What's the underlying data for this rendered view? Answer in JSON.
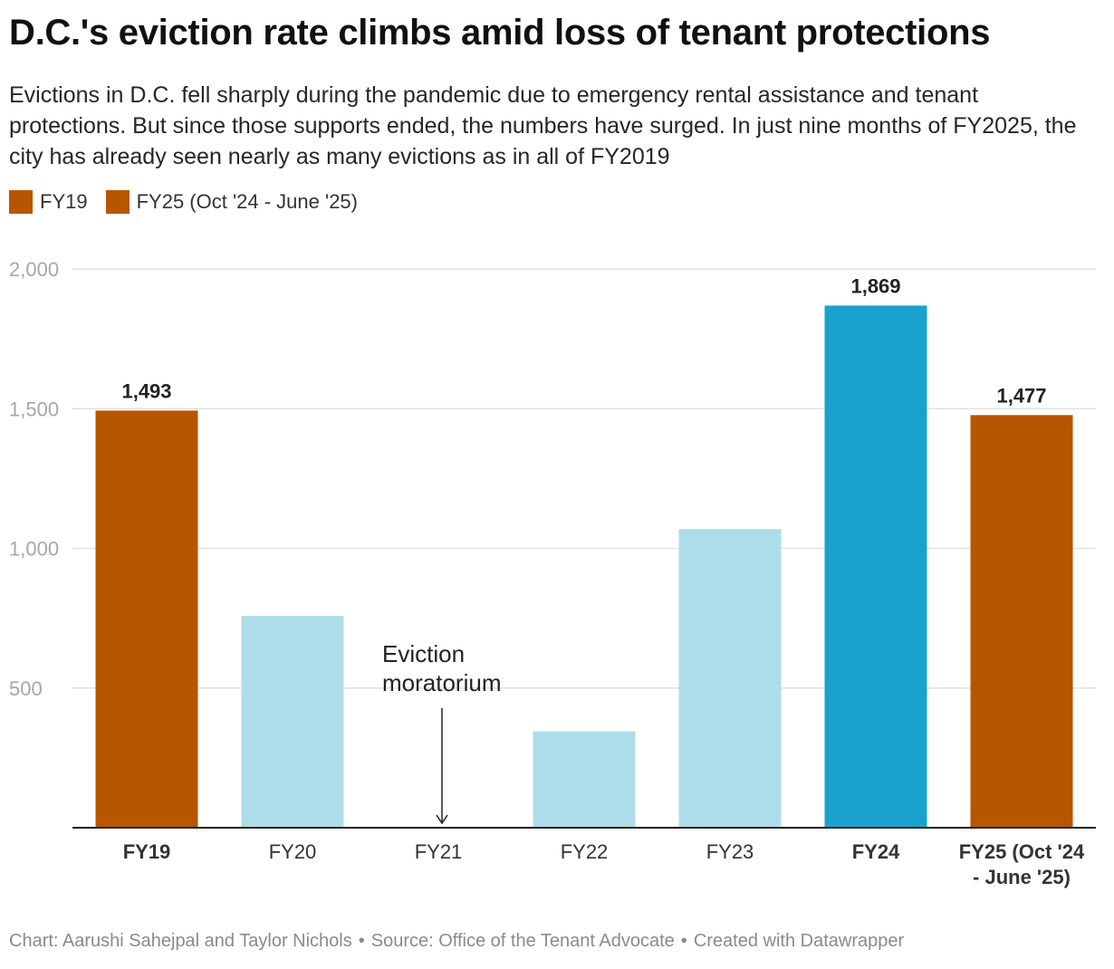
{
  "header": {
    "title": "D.C.'s eviction rate climbs amid loss of tenant protections",
    "subtitle": "Evictions in D.C. fell sharply during the pandemic due to emergency rental assistance and tenant protections. But since those supports ended, the numbers have surged. In just nine months of FY2025, the city has already seen nearly as many evictions as in all of FY2019"
  },
  "legend": [
    {
      "label": "FY19",
      "color": "#b85600"
    },
    {
      "label": "FY25 (Oct '24 - June '25)",
      "color": "#b85600"
    }
  ],
  "chart_data": {
    "type": "bar",
    "categories": [
      "FY19",
      "FY20",
      "FY21",
      "FY22",
      "FY23",
      "FY24",
      "FY25 (Oct '24 - June '25)"
    ],
    "category_label_lines": [
      [
        "FY19"
      ],
      [
        "FY20"
      ],
      [
        "FY21"
      ],
      [
        "FY22"
      ],
      [
        "FY23"
      ],
      [
        "FY24"
      ],
      [
        "FY25 (Oct '24",
        "- June '25)"
      ]
    ],
    "values": [
      1493,
      758,
      0,
      345,
      1069,
      1869,
      1477
    ],
    "colors": [
      "#b85600",
      "#addde9",
      "#addde9",
      "#addde9",
      "#addde9",
      "#1aa2cf",
      "#b85600"
    ],
    "bold_labels": [
      true,
      false,
      false,
      false,
      false,
      true,
      true
    ],
    "value_labels": [
      "1,493",
      "",
      "",
      "",
      "",
      "1,869",
      "1,477"
    ],
    "ylim": [
      0,
      2000
    ],
    "yticks": [
      500,
      1000,
      1500,
      2000
    ],
    "ytick_labels": [
      "500",
      "1,000",
      "1,500",
      "2,000"
    ],
    "grid": true,
    "annotation": {
      "category": "FY21",
      "lines": [
        "Eviction",
        "moratorium"
      ]
    },
    "xlabel": "",
    "ylabel": ""
  },
  "footer": {
    "chart_credit": "Chart: Aarushi Sahejpal and Taylor Nichols",
    "source": "Source: Office of the Tenant Advocate",
    "created_with": "Created with Datawrapper",
    "separator": "•"
  }
}
